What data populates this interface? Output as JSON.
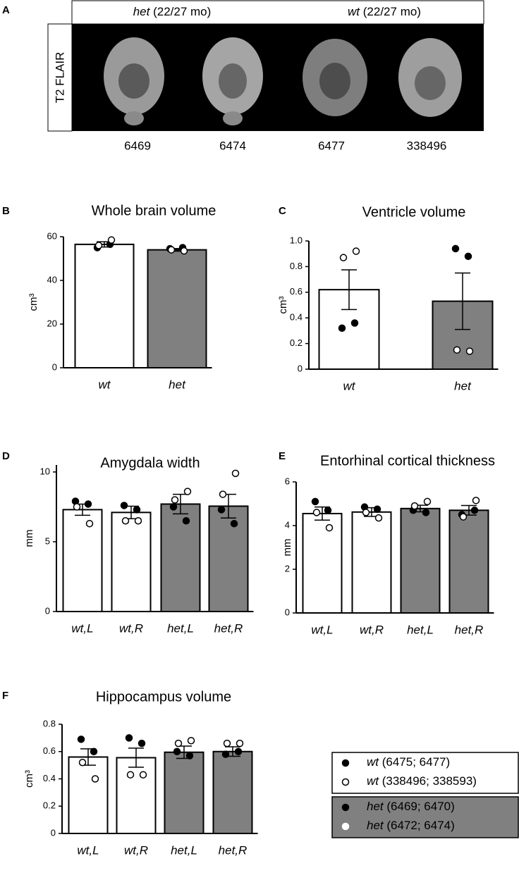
{
  "panel_a": {
    "letter": "A",
    "header": [
      {
        "group": "het",
        "age": "(22/27 mo)"
      },
      {
        "group": "wt",
        "age": "(22/27 mo)"
      }
    ],
    "side_label": "T2 FLAIR",
    "ids": [
      "6469",
      "6474",
      "6477",
      "338496"
    ]
  },
  "legend": [
    {
      "group": "wt",
      "ids": "(6475; 6477)",
      "filled": true,
      "color": "#ffffff"
    },
    {
      "group": "wt",
      "ids": "(338496; 338593)",
      "filled": false,
      "color": "#ffffff"
    },
    {
      "group": "het",
      "ids": "(6469; 6470)",
      "filled": true,
      "color": "#808080"
    },
    {
      "group": "het",
      "ids": "(6472; 6474)",
      "filled": false,
      "color": "#808080"
    }
  ],
  "chart_data": [
    {
      "type": "bar",
      "letter": "B",
      "title": "Whole brain volume",
      "y_label": "cm³",
      "categories": [
        "wt",
        "het"
      ],
      "bar_colors": [
        "#ffffff",
        "#808080"
      ],
      "values": [
        56.5,
        54
      ],
      "errors": [
        1.2,
        0.6
      ],
      "points_filled": [
        [
          55,
          56.5
        ],
        [
          54.5,
          55
        ]
      ],
      "points_open": [
        [
          58.5,
          56
        ],
        [
          53.5,
          54
        ]
      ],
      "ylim": [
        0,
        60
      ],
      "yticks": [
        0,
        20,
        40,
        60
      ]
    },
    {
      "type": "bar",
      "letter": "C",
      "title": "Ventricle volume",
      "y_label": "cm³",
      "categories": [
        "wt",
        "het"
      ],
      "bar_colors": [
        "#ffffff",
        "#808080"
      ],
      "values": [
        0.62,
        0.53
      ],
      "errors": [
        0.155,
        0.22
      ],
      "points_filled": [
        [
          0.32,
          0.36
        ],
        [
          0.94,
          0.88
        ]
      ],
      "points_open": [
        [
          0.92,
          0.87
        ],
        [
          0.14,
          0.15
        ]
      ],
      "ylim": [
        0,
        1
      ],
      "yticks": [
        0,
        0.2,
        0.4,
        0.6,
        0.8,
        {
          "value": 1,
          "label": "1.0"
        }
      ]
    },
    {
      "type": "bar",
      "letter": "D",
      "title": "Amygdala width",
      "y_label": "mm",
      "categories": [
        "wt,L",
        "wt,R",
        "het,L",
        "het,R"
      ],
      "bar_colors": [
        "#ffffff",
        "#ffffff",
        "#808080",
        "#808080"
      ],
      "values": [
        7.3,
        7.1,
        7.7,
        7.55
      ],
      "errors": [
        0.4,
        0.45,
        0.7,
        0.85
      ],
      "points_filled": [
        [
          7.9,
          7.7
        ],
        [
          7.6,
          7.3
        ],
        [
          7.5,
          6.5
        ],
        [
          7.3,
          6.3
        ]
      ],
      "points_open": [
        [
          6.3,
          7.5
        ],
        [
          6.5,
          6.5
        ],
        [
          8.6,
          8.0
        ],
        [
          9.9,
          8.4
        ]
      ],
      "ylim": [
        0,
        10.5
      ],
      "yticks": [
        0,
        5,
        10
      ]
    },
    {
      "type": "bar",
      "letter": "E",
      "title": "Entorhinal cortical thickness",
      "y_label": "mm",
      "categories": [
        "wt,L",
        "wt,R",
        "het,L",
        "het,R"
      ],
      "bar_colors": [
        "#ffffff",
        "#ffffff",
        "#808080",
        "#808080"
      ],
      "values": [
        4.55,
        4.62,
        4.78,
        4.7
      ],
      "errors": [
        0.3,
        0.2,
        0.15,
        0.22
      ],
      "points_filled": [
        [
          5.1,
          4.7
        ],
        [
          4.85,
          4.75
        ],
        [
          4.7,
          4.6
        ],
        [
          4.5,
          4.7
        ]
      ],
      "points_open": [
        [
          3.9,
          4.6
        ],
        [
          4.35,
          4.6
        ],
        [
          5.1,
          4.9
        ],
        [
          5.15,
          4.4
        ]
      ],
      "ylim": [
        0,
        6
      ],
      "yticks": [
        0,
        2,
        4,
        6
      ]
    },
    {
      "type": "bar",
      "letter": "F",
      "title": "Hippocampus volume",
      "y_label": "cm³",
      "categories": [
        "wt,L",
        "wt,R",
        "het,L",
        "het,R"
      ],
      "bar_colors": [
        "#ffffff",
        "#ffffff",
        "#808080",
        "#808080"
      ],
      "values": [
        0.56,
        0.555,
        0.595,
        0.6
      ],
      "errors": [
        0.06,
        0.07,
        0.045,
        0.035
      ],
      "points_filled": [
        [
          0.69,
          0.6
        ],
        [
          0.7,
          0.66
        ],
        [
          0.6,
          0.57
        ],
        [
          0.58,
          0.6
        ]
      ],
      "points_open": [
        [
          0.4,
          0.52
        ],
        [
          0.43,
          0.43
        ],
        [
          0.68,
          0.66
        ],
        [
          0.66,
          0.66
        ]
      ],
      "ylim": [
        0,
        0.8
      ],
      "yticks": [
        0,
        0.2,
        0.4,
        0.6,
        0.8
      ]
    }
  ]
}
